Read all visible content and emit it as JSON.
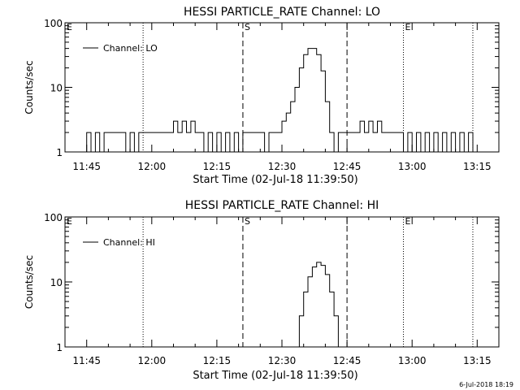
{
  "footer": {
    "stamp": "6-Jul-2018 18:19"
  },
  "chart_data": [
    {
      "type": "line",
      "title": "HESSI PARTICLE_RATE Channel: LO",
      "xlabel": "Start Time (02-Jul-18 11:39:50)",
      "ylabel": "Counts/sec",
      "yscale": "log",
      "ylim": [
        1,
        100
      ],
      "xlim": [
        "11:40",
        "13:20"
      ],
      "x_ticks": [
        "11:45",
        "12:00",
        "12:15",
        "12:30",
        "12:45",
        "13:00",
        "13:15"
      ],
      "y_ticks": [
        "1",
        "10",
        "100"
      ],
      "legend": {
        "label": "Channel: LO",
        "position": "top-left"
      },
      "markers": [
        {
          "label": "E",
          "time": "11:40",
          "style": "none"
        },
        {
          "label": "",
          "time": "11:58",
          "style": "dotted"
        },
        {
          "label": "S",
          "time": "12:21",
          "style": "dashed"
        },
        {
          "label": "",
          "time": "12:45",
          "style": "dashed"
        },
        {
          "label": "E",
          "time": "12:58",
          "style": "dotted"
        },
        {
          "label": "",
          "time": "13:14",
          "style": "dotted"
        }
      ],
      "series": [
        {
          "x": [
            "11:44",
            "11:45",
            "11:46",
            "11:47",
            "11:48",
            "11:49",
            "11:50",
            "11:51",
            "11:52",
            "11:53",
            "11:54",
            "11:55",
            "11:56",
            "11:57",
            "11:58",
            "11:59",
            "12:00",
            "12:01",
            "12:02",
            "12:03",
            "12:04",
            "12:05",
            "12:06",
            "12:07",
            "12:08",
            "12:09",
            "12:10",
            "12:11",
            "12:12",
            "12:13",
            "12:14",
            "12:15",
            "12:16",
            "12:17",
            "12:18",
            "12:19",
            "12:20",
            "12:21",
            "12:22",
            "12:23",
            "12:24",
            "12:25",
            "12:26",
            "12:27",
            "12:28",
            "12:29",
            "12:30",
            "12:31",
            "12:32",
            "12:33",
            "12:34",
            "12:35",
            "12:36",
            "12:37",
            "12:38",
            "12:39",
            "12:40",
            "12:41",
            "12:42",
            "12:43",
            "12:44",
            "12:45",
            "12:46",
            "12:47",
            "12:48",
            "12:49",
            "12:50",
            "12:51",
            "12:52",
            "12:53",
            "12:54",
            "12:55",
            "12:56",
            "12:57",
            "12:58",
            "12:59",
            "13:00",
            "13:01",
            "13:02",
            "13:03",
            "13:04",
            "13:05",
            "13:06",
            "13:07",
            "13:08",
            "13:09",
            "13:10",
            "13:11",
            "13:12",
            "13:13",
            "13:14",
            "13:15"
          ],
          "y": [
            1,
            2,
            1,
            2,
            1,
            2,
            2,
            2,
            2,
            2,
            1,
            2,
            1,
            2,
            2,
            2,
            2,
            2,
            2,
            2,
            2,
            3,
            2,
            3,
            2,
            3,
            2,
            2,
            1,
            2,
            1,
            2,
            1,
            2,
            1,
            2,
            1,
            2,
            2,
            2,
            2,
            2,
            1,
            2,
            2,
            2,
            3,
            4,
            6,
            10,
            20,
            32,
            40,
            40,
            32,
            18,
            6,
            2,
            1,
            2,
            2,
            2,
            2,
            2,
            3,
            2,
            3,
            2,
            3,
            2,
            2,
            2,
            2,
            2,
            1,
            2,
            1,
            2,
            1,
            2,
            1,
            2,
            1,
            2,
            1,
            2,
            1,
            2,
            1,
            2,
            1,
            1
          ]
        }
      ]
    },
    {
      "type": "line",
      "title": "HESSI PARTICLE_RATE Channel: HI",
      "xlabel": "Start Time (02-Jul-18 11:39:50)",
      "ylabel": "Counts/sec",
      "yscale": "log",
      "ylim": [
        1,
        100
      ],
      "xlim": [
        "11:40",
        "13:20"
      ],
      "x_ticks": [
        "11:45",
        "12:00",
        "12:15",
        "12:30",
        "12:45",
        "13:00",
        "13:15"
      ],
      "y_ticks": [
        "1",
        "10",
        "100"
      ],
      "legend": {
        "label": "Channel: HI",
        "position": "top-left"
      },
      "markers": [
        {
          "label": "E",
          "time": "11:40",
          "style": "none"
        },
        {
          "label": "",
          "time": "11:58",
          "style": "dotted"
        },
        {
          "label": "S",
          "time": "12:21",
          "style": "dashed"
        },
        {
          "label": "",
          "time": "12:45",
          "style": "dashed"
        },
        {
          "label": "E",
          "time": "12:58",
          "style": "dotted"
        },
        {
          "label": "",
          "time": "13:14",
          "style": "dotted"
        }
      ],
      "series": [
        {
          "x": [
            "12:33",
            "12:34",
            "12:35",
            "12:36",
            "12:37",
            "12:38",
            "12:39",
            "12:40",
            "12:41",
            "12:42",
            "12:43"
          ],
          "y": [
            1,
            3,
            7,
            12,
            17,
            20,
            18,
            13,
            7,
            3,
            1
          ]
        }
      ]
    }
  ]
}
